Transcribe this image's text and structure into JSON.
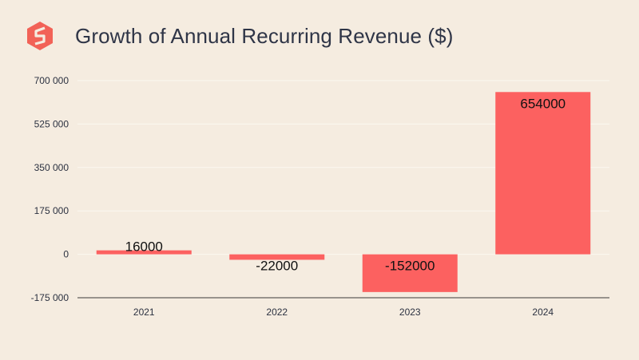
{
  "header": {
    "title": "Growth of Annual Recurring Revenue ($)"
  },
  "colors": {
    "background": "#f5ece0",
    "bar": "#fc6160",
    "grid": "#fbf7f1",
    "axis": "#3a3a3a",
    "logo": "#f26257"
  },
  "logo_icon": "brand-logo-icon",
  "chart_data": {
    "type": "bar",
    "title": "Growth of Annual Recurring Revenue ($)",
    "categories": [
      "2021",
      "2022",
      "2023",
      "2024"
    ],
    "values": [
      16000,
      -22000,
      -152000,
      654000
    ],
    "data_labels": [
      "16000",
      "-22000",
      "-152000",
      "654000"
    ],
    "xlabel": "",
    "ylabel": "",
    "ylim": [
      -175000,
      700000
    ],
    "yticks": [
      -175000,
      0,
      175000,
      350000,
      525000,
      700000
    ],
    "ytick_labels": [
      "-175 000",
      "0",
      "175 000",
      "350 000",
      "525 000",
      "700 000"
    ],
    "grid": true,
    "legend": "none"
  }
}
